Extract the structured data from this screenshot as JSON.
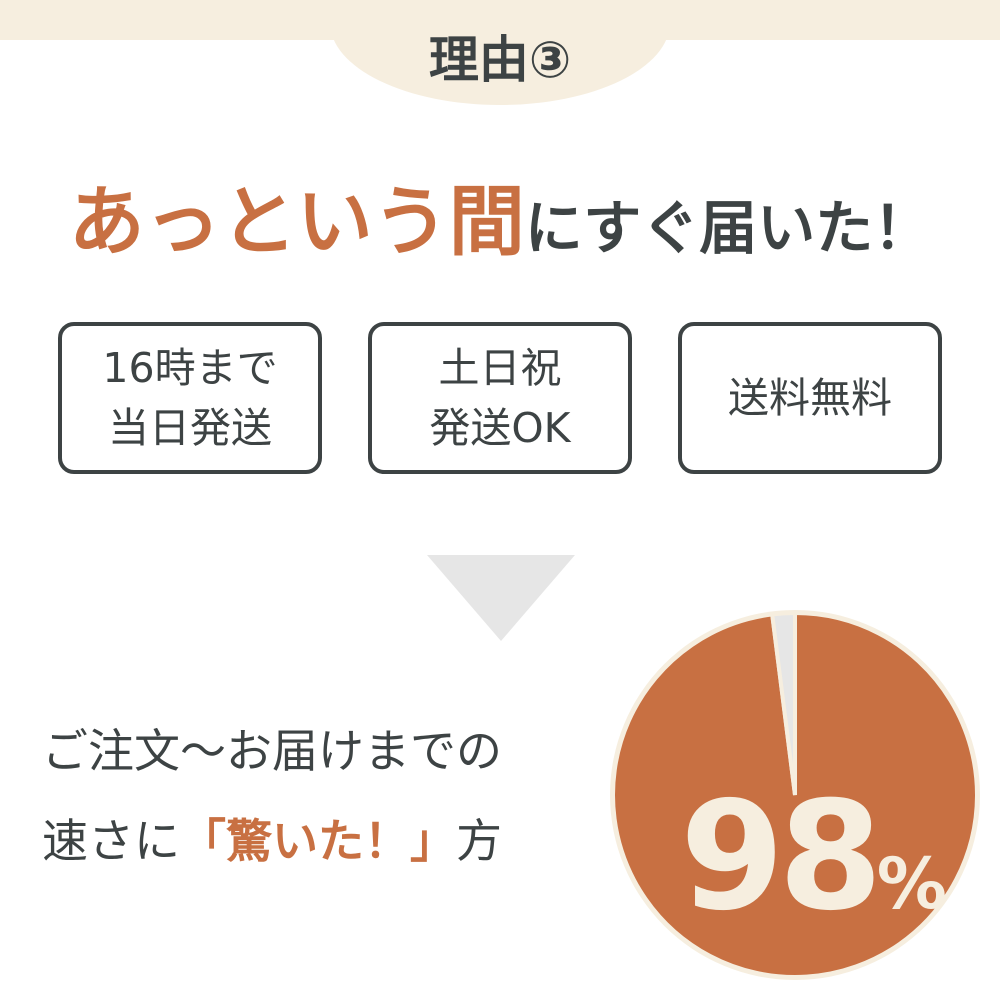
{
  "header": {
    "label": "理由③"
  },
  "headline": {
    "accent": "あっという間",
    "rest": "にすぐ届いた！"
  },
  "features": [
    {
      "line1": "16時まで",
      "line2": "当日発送"
    },
    {
      "line1": "土日祝",
      "line2": "発送OK"
    },
    {
      "line1": "送料無料",
      "line2": ""
    }
  ],
  "message": {
    "line1": "ご注文〜お届けまでの",
    "line2_pre": "速さに",
    "line2_accent": "「驚いた！」",
    "line2_post": "方"
  },
  "chart_data": {
    "type": "pie",
    "values": [
      98,
      2
    ],
    "colors": [
      "#c87042",
      "#e6e6e6"
    ],
    "label": "98",
    "unit": "%"
  },
  "colors": {
    "accent": "#c87042",
    "text": "#3d4344",
    "beige": "#f6eedf"
  }
}
